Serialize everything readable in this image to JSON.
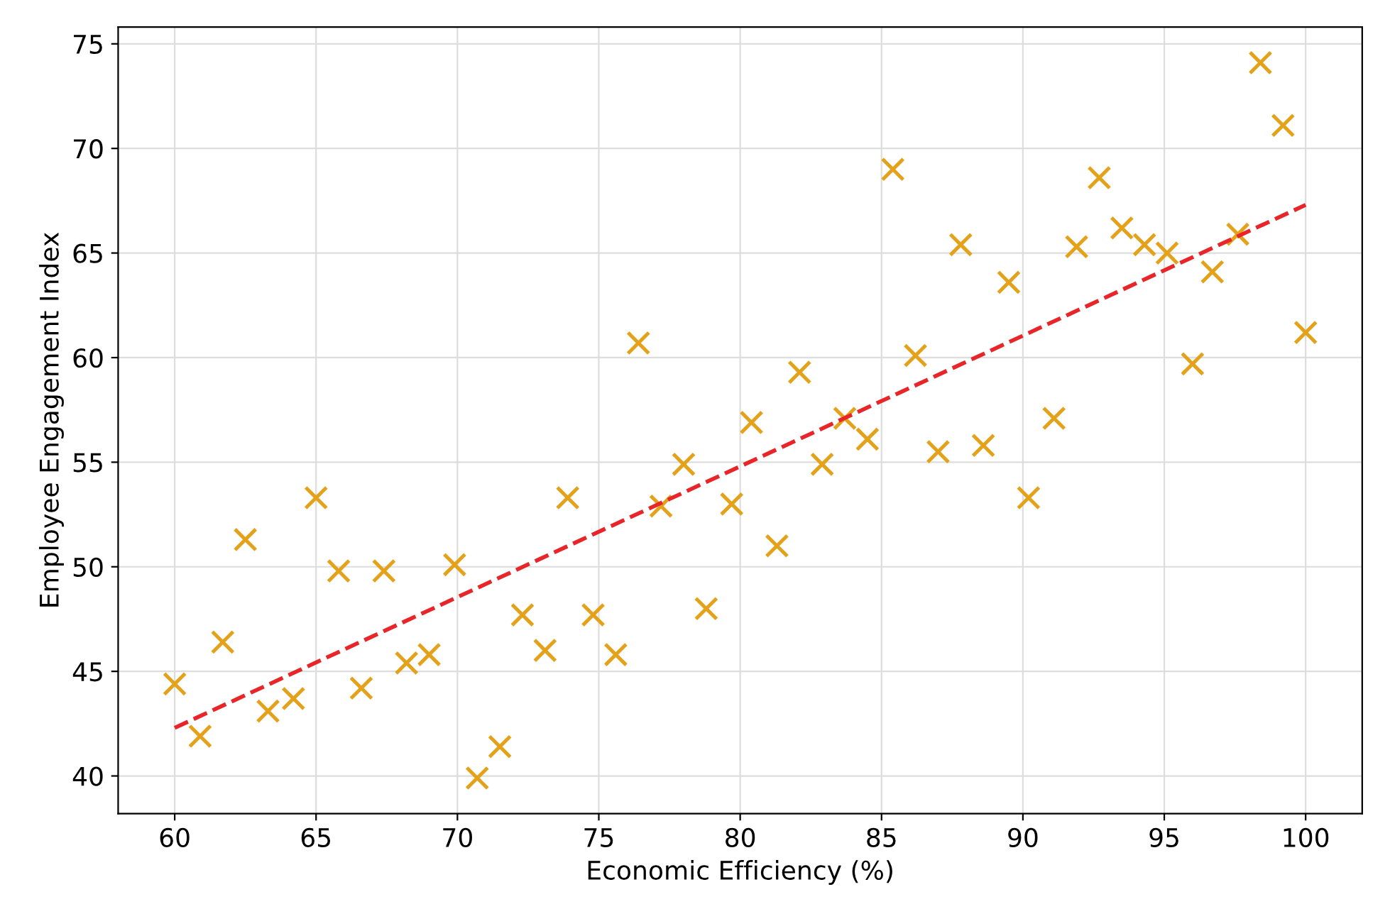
{
  "chart_data": {
    "type": "scatter",
    "xlabel": "Economic Efficiency (%)",
    "ylabel": "Employee Engagement Index",
    "series": [
      {
        "color": "#e3a21a",
        "marker": "cross",
        "x": [
          60.0,
          60.9,
          61.7,
          62.5,
          63.3,
          64.2,
          65.0,
          65.8,
          66.6,
          67.4,
          68.2,
          69.0,
          69.9,
          70.7,
          71.5,
          72.3,
          73.1,
          73.9,
          74.8,
          75.6,
          76.4,
          77.2,
          78.0,
          78.8,
          79.7,
          80.4,
          81.3,
          82.1,
          82.9,
          83.7,
          84.5,
          85.4,
          86.2,
          87.0,
          87.8,
          88.6,
          89.5,
          90.2,
          91.1,
          91.9,
          92.7,
          93.5,
          94.3,
          95.1,
          96.0,
          96.7,
          97.6,
          98.4,
          99.2,
          100.0
        ],
        "values": [
          44.4,
          41.9,
          46.4,
          51.3,
          43.1,
          43.7,
          53.3,
          49.8,
          44.2,
          49.8,
          45.4,
          45.8,
          50.1,
          39.9,
          41.4,
          47.7,
          46.0,
          53.3,
          47.7,
          45.8,
          60.7,
          52.9,
          54.9,
          48.0,
          53.0,
          56.9,
          51.0,
          59.3,
          54.9,
          57.1,
          56.1,
          69.0,
          60.1,
          55.5,
          65.4,
          55.8,
          63.6,
          53.3,
          57.1,
          65.3,
          68.6,
          66.2,
          65.4,
          65.0,
          59.7,
          64.1,
          65.9,
          74.1,
          71.1,
          61.2
        ]
      },
      {
        "type": "line",
        "color": "#e8262a",
        "line_style": "dashed",
        "x": [
          60,
          100
        ],
        "values": [
          42.3,
          67.3
        ]
      }
    ],
    "xlim": [
      58,
      102
    ],
    "ylim": [
      38.2,
      75.8
    ],
    "xticks": [
      60,
      65,
      70,
      75,
      80,
      85,
      90,
      95,
      100
    ],
    "yticks": [
      40,
      45,
      50,
      55,
      60,
      65,
      70,
      75
    ],
    "grid": true
  }
}
